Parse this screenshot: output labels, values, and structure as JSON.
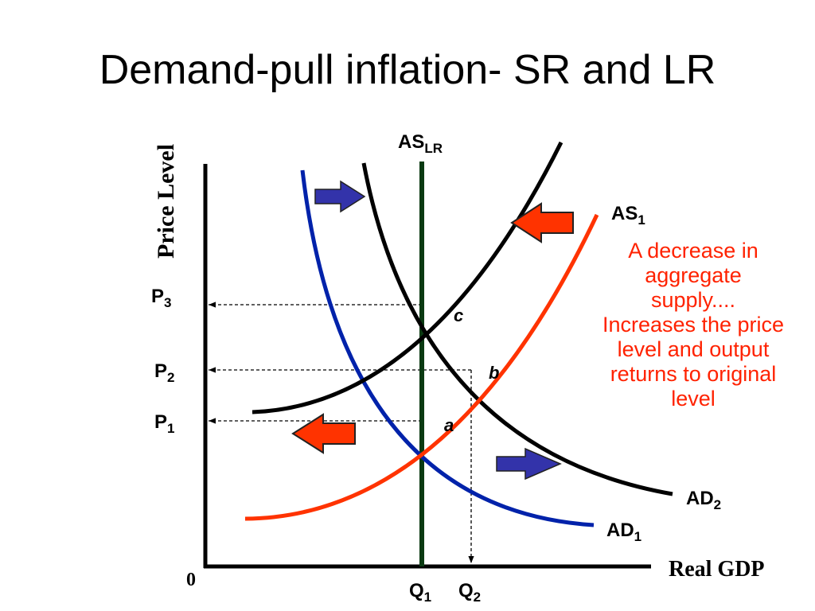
{
  "title": "Demand-pull inflation- SR and LR",
  "axes": {
    "y_label": "Price Level",
    "x_label": "Real GDP",
    "origin": "0"
  },
  "curves": {
    "as_lr": {
      "main": "AS",
      "sub": "LR",
      "color": "#0a3a12"
    },
    "as1": {
      "main": "AS",
      "sub": "1",
      "color": "#ff3300"
    },
    "ad1": {
      "main": "AD",
      "sub": "1",
      "color": "#0022aa"
    },
    "ad2": {
      "main": "AD",
      "sub": "2",
      "color": "#000000"
    },
    "sras_shifted": {
      "color": "#000000"
    }
  },
  "price_levels": [
    {
      "main": "P",
      "sub": "3"
    },
    {
      "main": "P",
      "sub": "2"
    },
    {
      "main": "P",
      "sub": "1"
    }
  ],
  "quantities": [
    {
      "main": "Q",
      "sub": "1"
    },
    {
      "main": "Q",
      "sub": "2"
    }
  ],
  "points": {
    "a": "a",
    "b": "b",
    "c": "c"
  },
  "arrow_colors": {
    "red": "#ff3300",
    "blue": "#3333aa"
  },
  "note": [
    "A decrease in",
    "aggregate",
    "supply....",
    "Increases the price",
    "level and output",
    "returns to original",
    "level"
  ]
}
